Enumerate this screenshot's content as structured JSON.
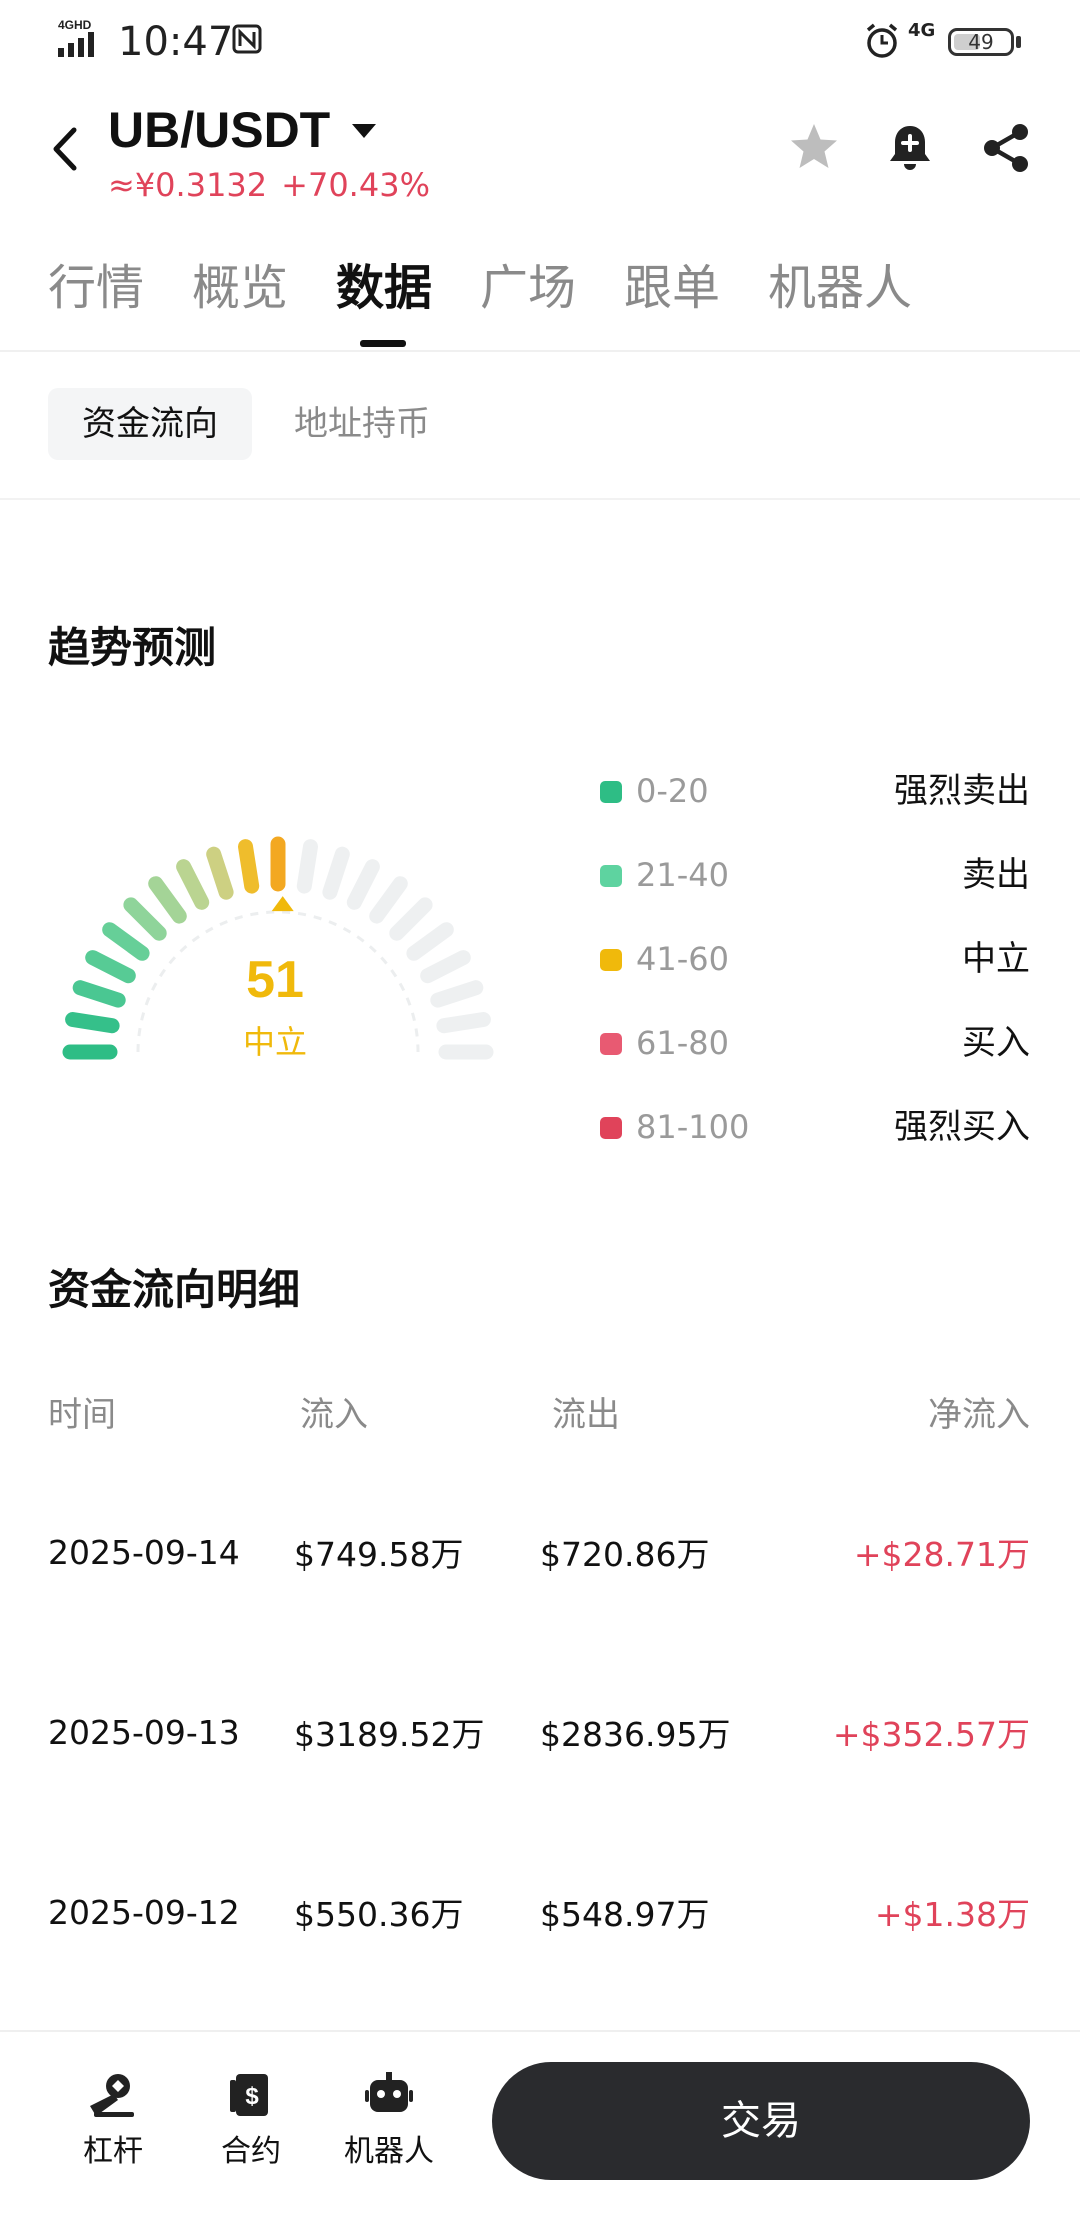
{
  "status_bar": {
    "network": "4GHD",
    "time": "10:47",
    "mobile_data": "4G",
    "battery": "49"
  },
  "header": {
    "pair": "UB/USDT",
    "price_cny": "≈¥0.3132",
    "change_pct": "+70.43%"
  },
  "tabs": [
    {
      "label": "行情"
    },
    {
      "label": "概览"
    },
    {
      "label": "数据",
      "active": true
    },
    {
      "label": "广场"
    },
    {
      "label": "跟单"
    },
    {
      "label": "机器人"
    }
  ],
  "subtabs": [
    {
      "label": "资金流向",
      "active": true
    },
    {
      "label": "地址持币"
    }
  ],
  "trend": {
    "title": "趋势预测",
    "score": "51",
    "score_label": "中立",
    "score_fraction": 0.51,
    "legend": [
      {
        "range": "0-20",
        "label": "强烈卖出",
        "color": "#2ebd85"
      },
      {
        "range": "21-40",
        "label": "卖出",
        "color": "#5ed3a0"
      },
      {
        "range": "41-60",
        "label": "中立",
        "color": "#f0b90b"
      },
      {
        "range": "61-80",
        "label": "买入",
        "color": "#e85a72"
      },
      {
        "range": "81-100",
        "label": "强烈买入",
        "color": "#e0435a"
      }
    ]
  },
  "flow": {
    "title": "资金流向明细",
    "headers": [
      "时间",
      "流入",
      "流出",
      "净流入"
    ],
    "rows": [
      {
        "date": "2025-09-14",
        "inflow": "$749.58万",
        "outflow": "$720.86万",
        "net": "+$28.71万"
      },
      {
        "date": "2025-09-13",
        "inflow": "$3189.52万",
        "outflow": "$2836.95万",
        "net": "+$352.57万"
      },
      {
        "date": "2025-09-12",
        "inflow": "$550.36万",
        "outflow": "$548.97万",
        "net": "+$1.38万"
      }
    ]
  },
  "bottom_nav": {
    "items": [
      {
        "label": "杠杆",
        "icon": "leverage-icon"
      },
      {
        "label": "合约",
        "icon": "contract-icon"
      },
      {
        "label": "机器人",
        "icon": "robot-icon"
      }
    ],
    "trade_label": "交易"
  },
  "colors": {
    "accent_red": "#e0435a",
    "neutral_yellow": "#f0b90b",
    "green": "#2ebd85"
  }
}
